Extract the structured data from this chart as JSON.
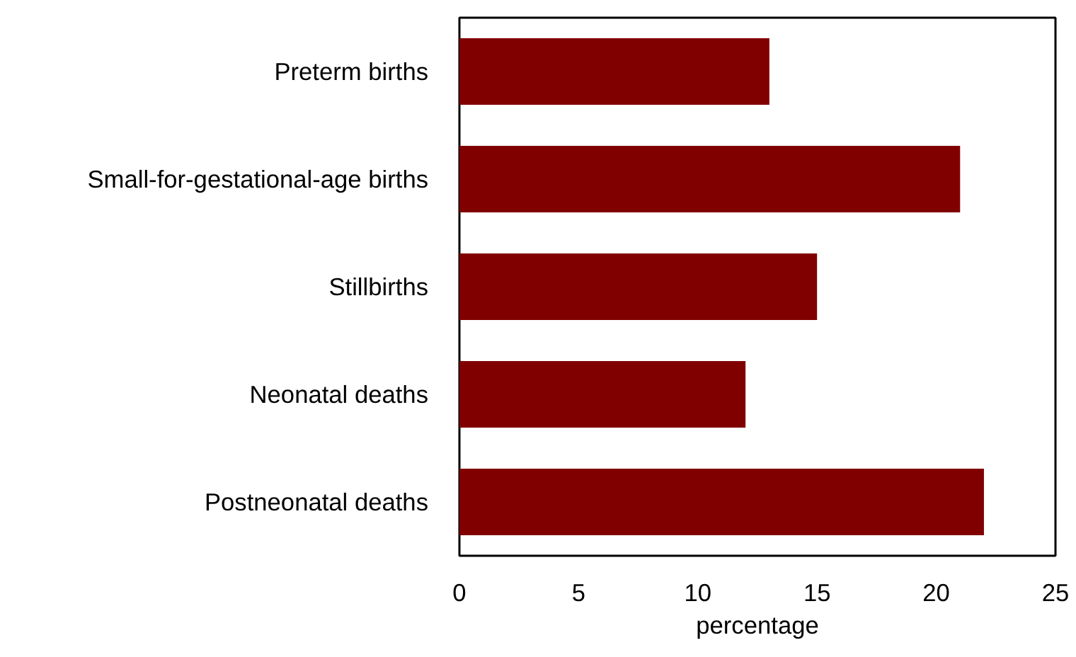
{
  "chart_data": {
    "type": "bar",
    "orientation": "horizontal",
    "xlabel": "percentage",
    "categories": [
      "Preterm births",
      "Small-for-gestational-age births",
      "Stillbirths",
      "Neonatal deaths",
      "Postneonatal deaths"
    ],
    "values": [
      13,
      21,
      15,
      12,
      22
    ],
    "color": "#800000",
    "xlim": [
      0,
      25
    ],
    "xticks": [
      0,
      5,
      10,
      15,
      20,
      25
    ],
    "grid": false
  }
}
